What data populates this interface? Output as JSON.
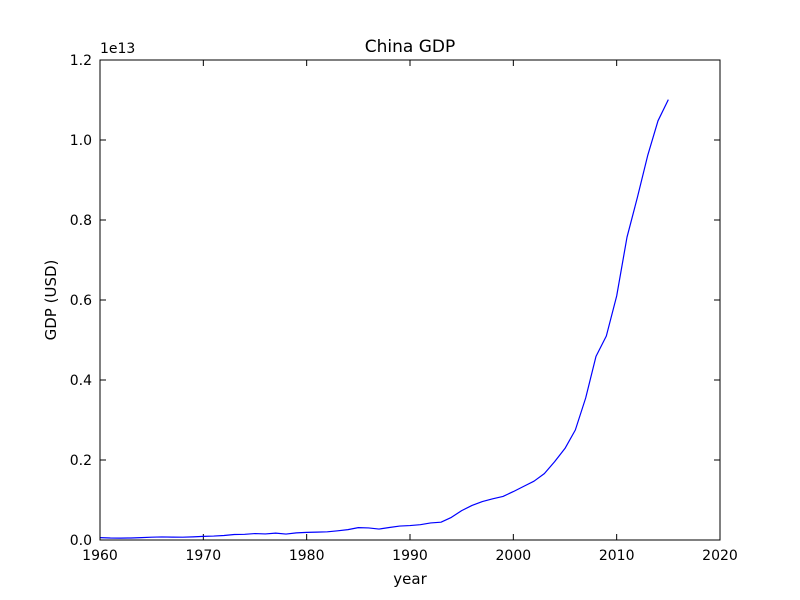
{
  "chart_data": {
    "type": "line",
    "title": "China GDP",
    "xlabel": "year",
    "ylabel": "GDP (USD)",
    "y_offset_label": "1e13",
    "xlim": [
      1960,
      2020
    ],
    "ylim": [
      0,
      12000000000000
    ],
    "x_ticks": [
      1960,
      1970,
      1980,
      1990,
      2000,
      2010,
      2020
    ],
    "y_ticks": [
      0,
      2000000000000,
      4000000000000,
      6000000000000,
      8000000000000,
      10000000000000,
      12000000000000
    ],
    "x_tick_labels": [
      "1960",
      "1970",
      "1980",
      "1990",
      "2000",
      "2010",
      "2020"
    ],
    "y_tick_labels": [
      "0.0",
      "0.2",
      "0.4",
      "0.6",
      "0.8",
      "1.0",
      "1.2"
    ],
    "grid": false,
    "line_color": "#0000ff",
    "series": [
      {
        "x": [
          1960,
          1961,
          1962,
          1963,
          1964,
          1965,
          1966,
          1967,
          1968,
          1969,
          1970,
          1971,
          1972,
          1973,
          1974,
          1975,
          1976,
          1977,
          1978,
          1979,
          1980,
          1981,
          1982,
          1983,
          1984,
          1985,
          1986,
          1987,
          1988,
          1989,
          1990,
          1991,
          1992,
          1993,
          1994,
          1995,
          1996,
          1997,
          1998,
          1999,
          2000,
          2001,
          2002,
          2003,
          2004,
          2005,
          2006,
          2007,
          2008,
          2009,
          2010,
          2011,
          2012,
          2013,
          2014,
          2015
        ],
        "y": [
          59700000000,
          50100000000,
          47200000000,
          50700000000,
          59700000000,
          70400000000,
          76700000000,
          72100000000,
          69900000000,
          78700000000,
          91500000000,
          98600000000,
          112000000000,
          137000000000,
          142000000000,
          161000000000,
          151000000000,
          172000000000,
          149000000000,
          178000000000,
          191000000000,
          196000000000,
          205000000000,
          230000000000,
          260000000000,
          309000000000,
          301000000000,
          273000000000,
          312000000000,
          348000000000,
          361000000000,
          383000000000,
          427000000000,
          445000000000,
          565000000000,
          734000000000,
          864000000000,
          962000000000,
          1030000000000,
          1090000000000,
          1210000000000,
          1340000000000,
          1470000000000,
          1660000000000,
          1960000000000,
          2290000000000,
          2750000000000,
          3550000000000,
          4590000000000,
          5100000000000,
          6100000000000,
          7570000000000,
          8560000000000,
          9610000000000,
          10480000000000,
          11010000000000
        ]
      }
    ]
  }
}
